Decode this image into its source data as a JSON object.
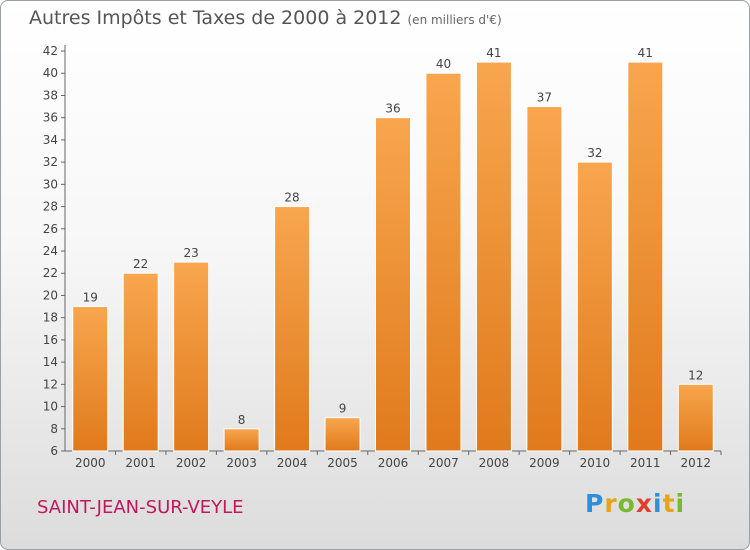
{
  "title": "Autres Impôts et Taxes de 2000 à 2012",
  "unit": "(en milliers d'€)",
  "commune": "SAINT-JEAN-SUR-VEYLE",
  "brand": {
    "letters": [
      "P",
      "r",
      "o",
      "x",
      "i",
      "t",
      "i"
    ],
    "colors": [
      "#2f8fd8",
      "#e8a417",
      "#7cb82f",
      "#e0402c",
      "#2f8fd8",
      "#e8a417",
      "#7cb82f"
    ]
  },
  "colors": {
    "bar_light": "#f8a64e",
    "bar_dark": "#e07a1c",
    "commune": "#c2185b"
  },
  "chart_data": {
    "type": "bar",
    "categories": [
      "2000",
      "2001",
      "2002",
      "2003",
      "2004",
      "2005",
      "2006",
      "2007",
      "2008",
      "2009",
      "2010",
      "2011",
      "2012"
    ],
    "values": [
      19,
      22,
      23,
      8,
      28,
      9,
      36,
      40,
      41,
      37,
      32,
      41,
      12
    ],
    "ylim": [
      6,
      42
    ],
    "yticks": [
      6,
      8,
      10,
      12,
      14,
      16,
      18,
      20,
      22,
      24,
      26,
      28,
      30,
      32,
      34,
      36,
      38,
      40,
      42
    ],
    "grid": false,
    "title": "Autres Impôts et Taxes de 2000 à 2012",
    "xlabel": "",
    "ylabel": ""
  }
}
